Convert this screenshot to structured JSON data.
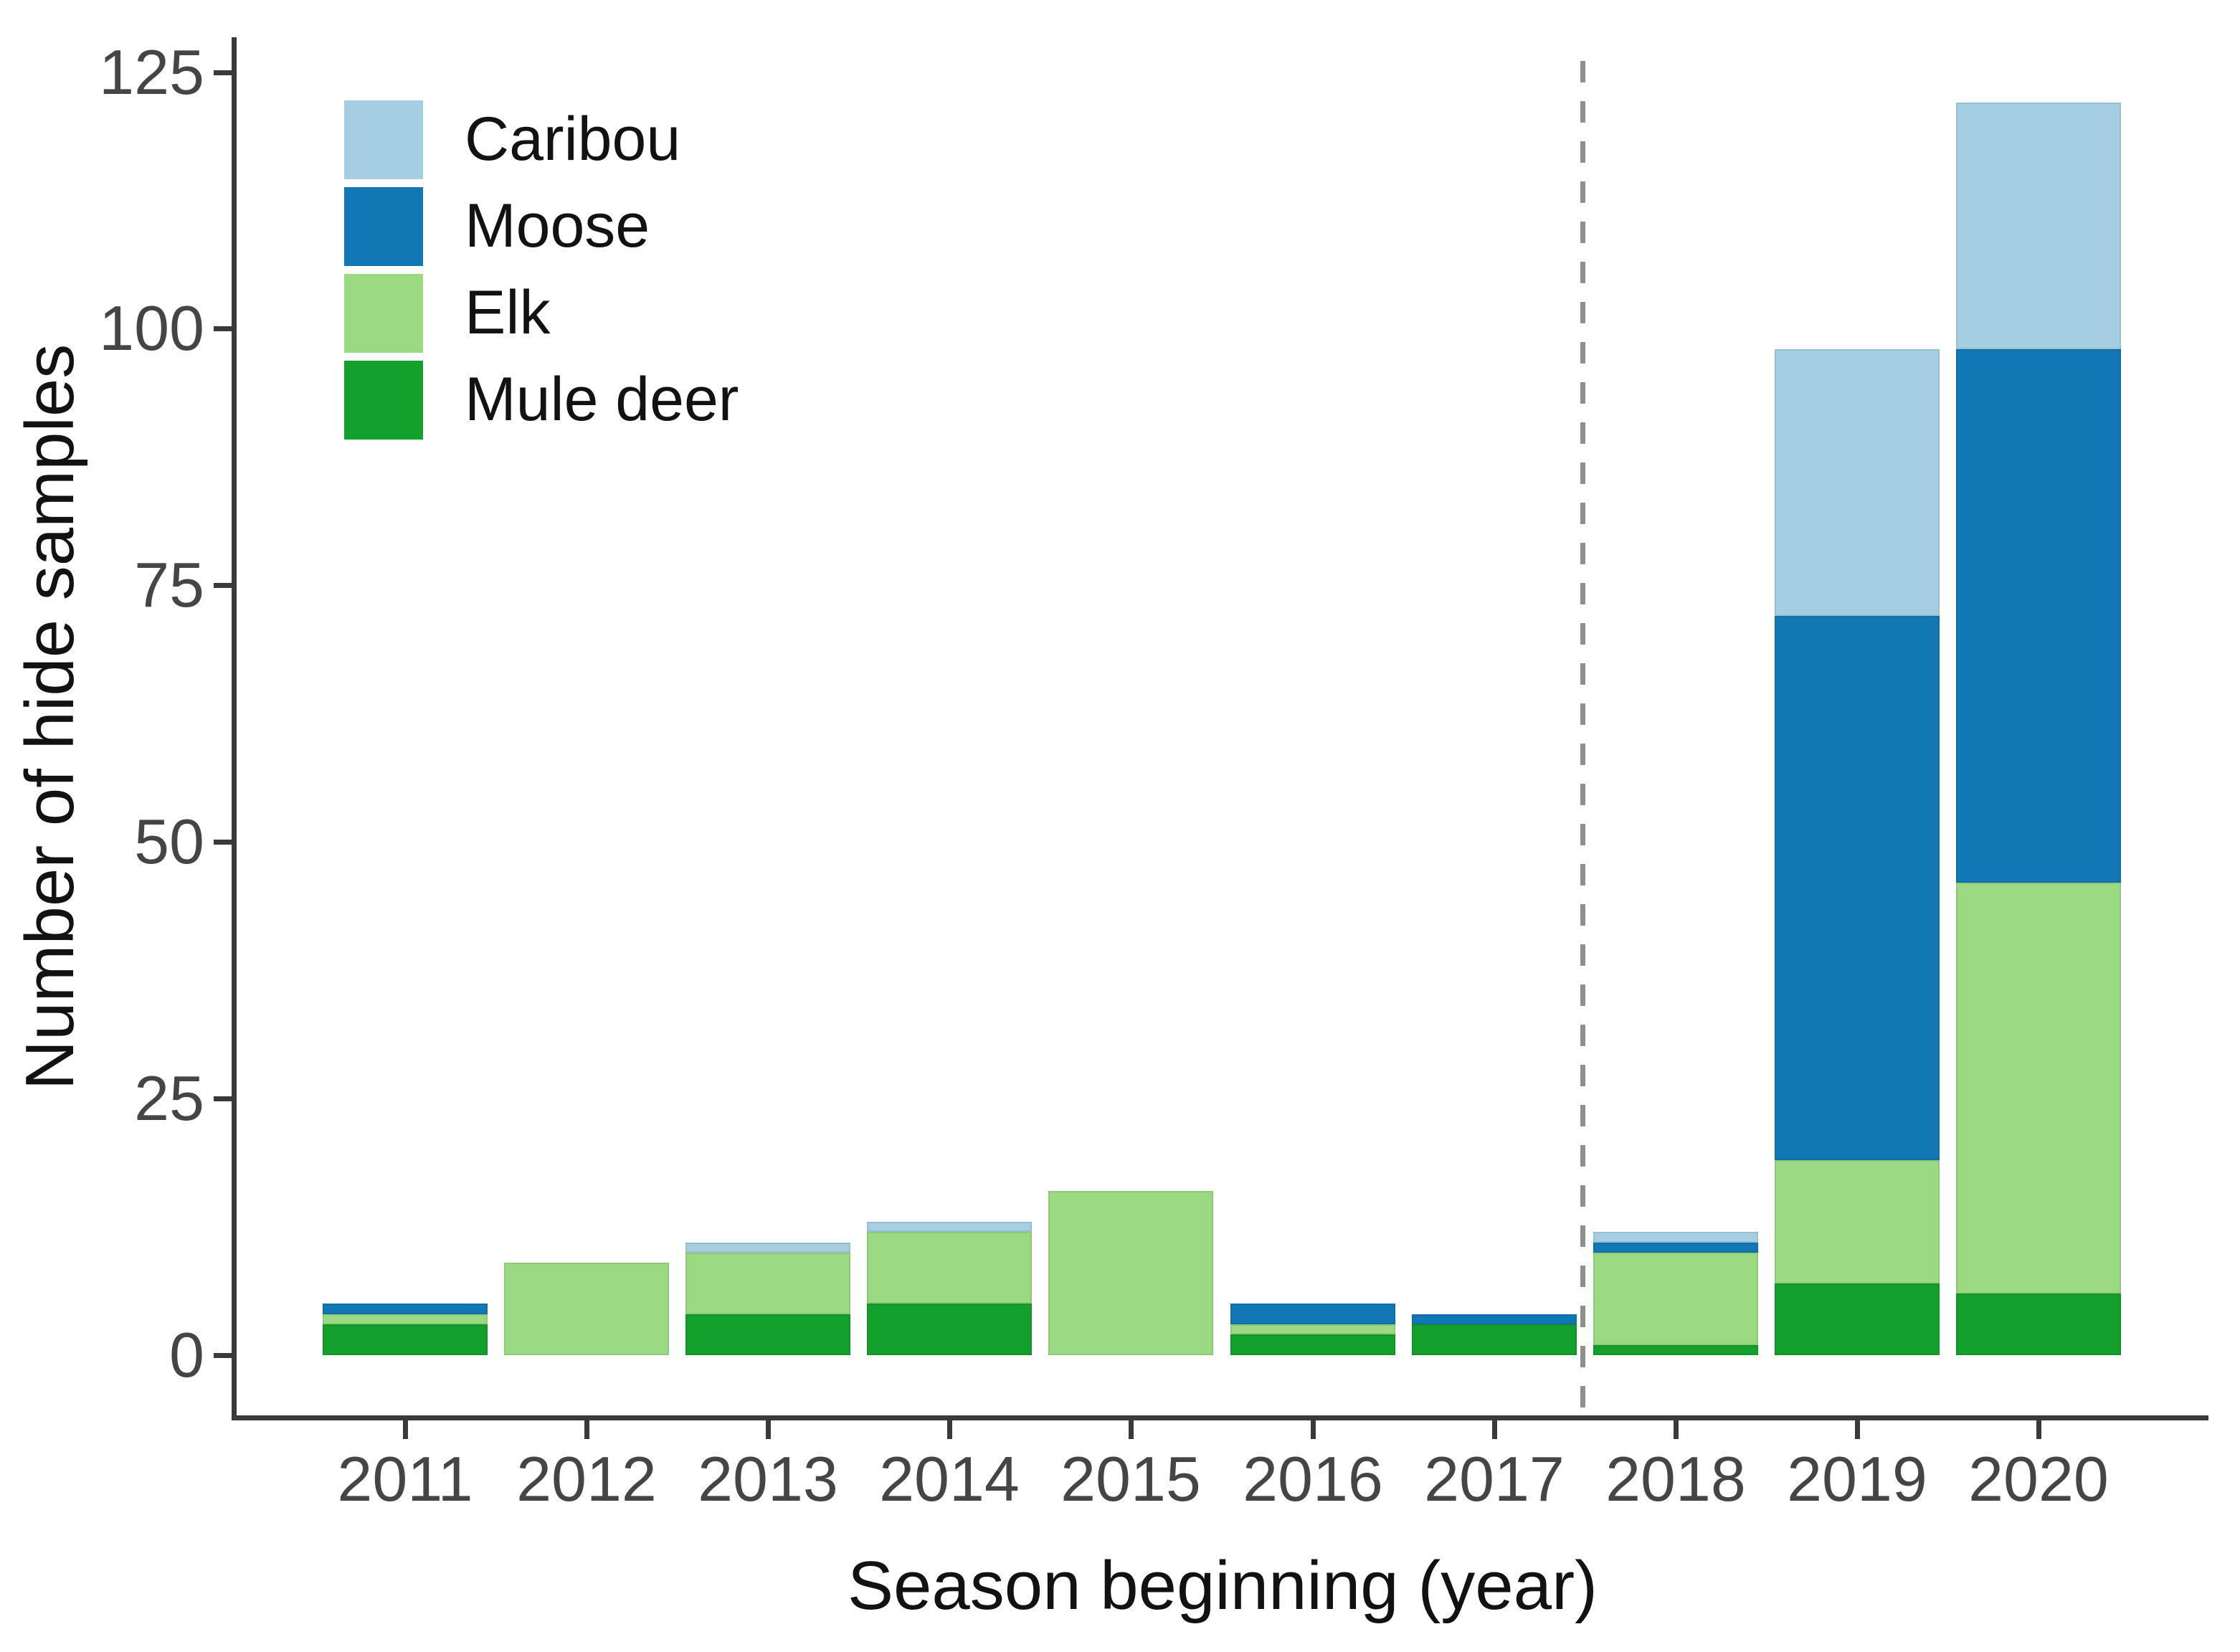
{
  "chart_data": {
    "type": "bar",
    "stacked": true,
    "title": "",
    "xlabel": "Season beginning (year)",
    "ylabel": "Number of hide samples",
    "categories": [
      "2011",
      "2012",
      "2013",
      "2014",
      "2015",
      "2016",
      "2017",
      "2018",
      "2019",
      "2020"
    ],
    "series": [
      {
        "name": "Caribou",
        "color": "#a6cee3",
        "values": [
          0,
          0,
          1,
          1,
          0,
          0,
          0,
          1,
          26,
          24
        ]
      },
      {
        "name": "Moose",
        "color": "#1178b5",
        "values": [
          1,
          0,
          0,
          0,
          0,
          2,
          1,
          1,
          53,
          52
        ]
      },
      {
        "name": "Elk",
        "color": "#9bd983",
        "values": [
          1,
          9,
          6,
          7,
          16,
          1,
          0,
          9,
          12,
          40
        ]
      },
      {
        "name": "Mule deer",
        "color": "#14a02c",
        "values": [
          3,
          0,
          4,
          5,
          0,
          2,
          3,
          1,
          7,
          6
        ]
      }
    ],
    "totals": [
      5,
      9,
      11,
      13,
      16,
      5,
      4,
      12,
      98,
      122
    ],
    "ylim": [
      0,
      125
    ],
    "yticks": [
      0,
      25,
      50,
      75,
      100,
      125
    ],
    "grid": "off",
    "legend_position": "top-left",
    "legend_order": [
      "Caribou",
      "Moose",
      "Elk",
      "Mule deer"
    ],
    "divider": {
      "type": "dashed-vertical-line",
      "between_categories": [
        "2017",
        "2018"
      ],
      "color": "#8f8f8f"
    },
    "axis_text_color": "#454545",
    "axis_line_color": "#3a3a3a"
  }
}
